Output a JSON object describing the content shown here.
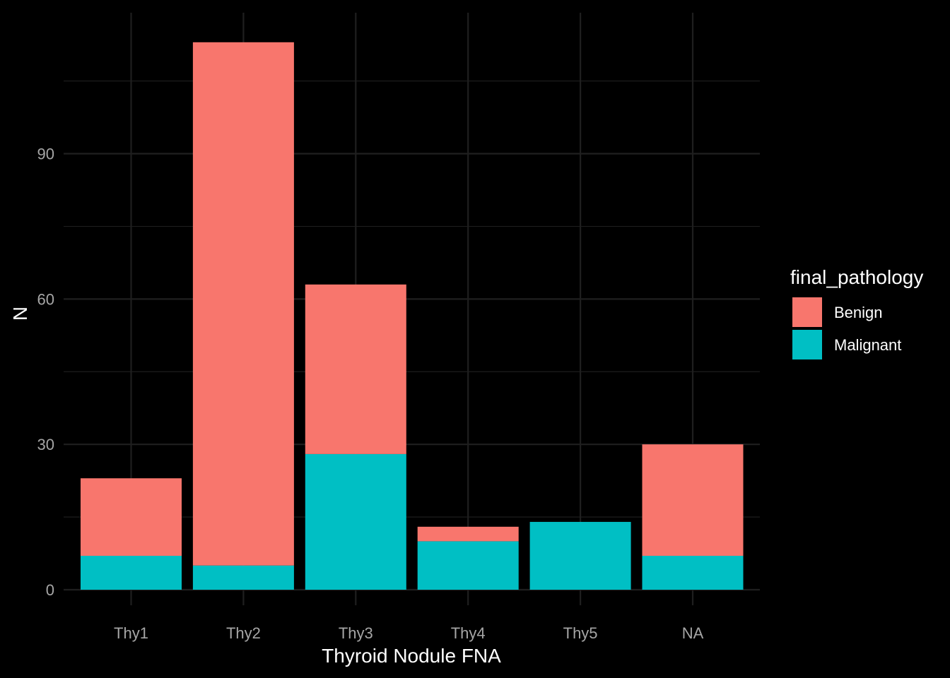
{
  "chart_data": {
    "type": "bar",
    "stacked": true,
    "categories": [
      "Thy1",
      "Thy2",
      "Thy3",
      "Thy4",
      "Thy5",
      "NA"
    ],
    "series": [
      {
        "name": "Benign",
        "values": [
          16,
          108,
          35,
          3,
          0,
          23
        ],
        "color": "#F8766D"
      },
      {
        "name": "Malignant",
        "values": [
          7,
          5,
          28,
          10,
          14,
          7
        ],
        "color": "#00BFC4"
      }
    ],
    "xlabel": "Thyroid Nodule FNA",
    "ylabel": "N",
    "ylim": [
      0,
      113
    ],
    "yticks": [
      0,
      30,
      60,
      90
    ],
    "yticks_minor": [
      15,
      45,
      75,
      105
    ],
    "grid": true,
    "legend": {
      "title": "final_pathology",
      "placement": "right"
    },
    "background": "#000000",
    "grid_color": "#1f1f1f"
  }
}
